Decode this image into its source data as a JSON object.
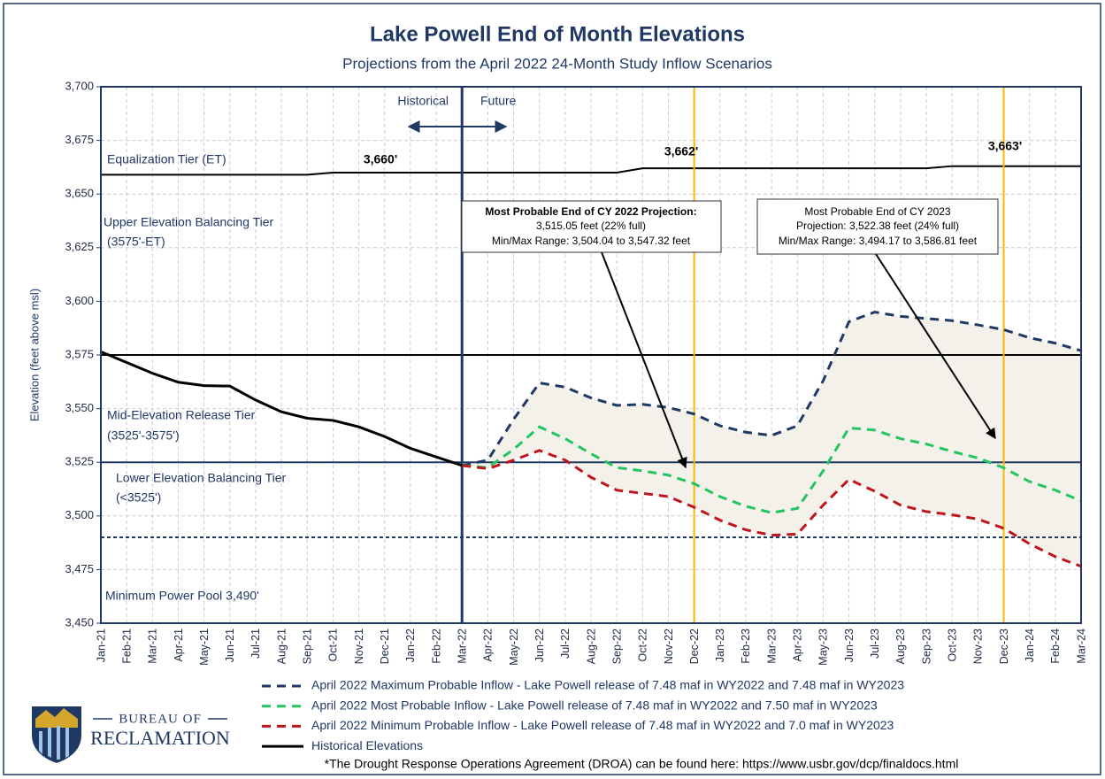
{
  "chart_data": {
    "type": "line",
    "title": "Lake Powell End of Month Elevations",
    "subtitle": "Projections from the April 2022 24-Month Study Inflow Scenarios",
    "y_label": "Elevation (feet above msl)",
    "categories": [
      "Jan-21",
      "Feb-21",
      "Mar-21",
      "Apr-21",
      "May-21",
      "Jun-21",
      "Jul-21",
      "Aug-21",
      "Sep-21",
      "Oct-21",
      "Nov-21",
      "Dec-21",
      "Jan-22",
      "Feb-22",
      "Mar-22",
      "Apr-22",
      "May-22",
      "Jun-22",
      "Jul-22",
      "Aug-22",
      "Sep-22",
      "Oct-22",
      "Nov-22",
      "Dec-22",
      "Jan-23",
      "Feb-23",
      "Mar-23",
      "Apr-23",
      "May-23",
      "Jun-23",
      "Jul-23",
      "Aug-23",
      "Sep-23",
      "Oct-23",
      "Nov-23",
      "Dec-23",
      "Jan-24",
      "Feb-24",
      "Mar-24"
    ],
    "ylim": [
      3450,
      3700
    ],
    "yticks": [
      {
        "value": 3450,
        "label": "3,450"
      },
      {
        "value": 3475,
        "label": "3,475"
      },
      {
        "value": 3500,
        "label": "3,500"
      },
      {
        "value": 3525,
        "label": "3,525"
      },
      {
        "value": 3550,
        "label": "3,550"
      },
      {
        "value": 3575,
        "label": "3,575"
      },
      {
        "value": 3600,
        "label": "3,600"
      },
      {
        "value": 3625,
        "label": "3,625"
      },
      {
        "value": 3650,
        "label": "3,650"
      },
      {
        "value": 3675,
        "label": "3,675"
      },
      {
        "value": 3700,
        "label": "3,700"
      }
    ],
    "grid": true,
    "series": [
      {
        "name": "April  2022 Maximum Probable Inflow - Lake Powell release of 7.48 maf in WY2022 and 7.48 maf in WY2023",
        "color": "#1f3864",
        "dashed": true,
        "values": [
          null,
          null,
          null,
          null,
          null,
          null,
          null,
          null,
          null,
          null,
          null,
          null,
          null,
          null,
          3523.5,
          3526,
          3545,
          3562,
          3560,
          3555,
          3551.5,
          3552,
          3550.5,
          3547.5,
          3542,
          3539,
          3537.5,
          3542,
          3563,
          3590.5,
          3595,
          3593,
          3592,
          3591,
          3589,
          3586.8,
          3583,
          3580.5,
          3577
        ]
      },
      {
        "name": "April 2022 Most Probable Inflow - Lake Powell release of 7.48 maf in WY2022 and 7.50 maf in WY2023",
        "color": "#22c55e",
        "dashed": true,
        "values": [
          null,
          null,
          null,
          null,
          null,
          null,
          null,
          null,
          null,
          null,
          null,
          null,
          null,
          null,
          3523.5,
          3522.5,
          3531,
          3541.5,
          3536,
          3529,
          3522.5,
          3521,
          3519,
          3515,
          3509,
          3504.5,
          3501.5,
          3503.5,
          3521,
          3541,
          3540,
          3536,
          3533.5,
          3530,
          3527,
          3522.4,
          3516,
          3512,
          3507
        ]
      },
      {
        "name": "April 2022 Minimum Probable Inflow - Lake Powell release of 7.48 maf in WY2022 and 7.0 maf in WY2023",
        "color": "#c0141c",
        "dashed": true,
        "values": [
          null,
          null,
          null,
          null,
          null,
          null,
          null,
          null,
          null,
          null,
          null,
          null,
          null,
          null,
          3523.5,
          3522,
          3526,
          3530.5,
          3526,
          3518,
          3512,
          3510.5,
          3509,
          3504,
          3498,
          3493.5,
          3491,
          3491.5,
          3505,
          3517,
          3511.5,
          3505,
          3502,
          3500.5,
          3498.5,
          3494.2,
          3487,
          3481,
          3476.5
        ]
      },
      {
        "name": "Historical Elevations",
        "color": "#000000",
        "dashed": false,
        "values": [
          3576.5,
          3571.5,
          3566.5,
          3562.3,
          3560.7,
          3560.5,
          3554,
          3548.5,
          3545.5,
          3544.5,
          3541.5,
          3537,
          3531.5,
          3527.5,
          3523.5,
          null,
          null,
          null,
          null,
          null,
          null,
          null,
          null,
          null,
          null,
          null,
          null,
          null,
          null,
          null,
          null,
          null,
          null,
          null,
          null,
          null,
          null,
          null,
          null
        ]
      }
    ],
    "range_fill": "#f3f1ea",
    "tier_line": {
      "color": "#000000",
      "values": [
        3659,
        3659,
        3659,
        3659,
        3659,
        3659,
        3659,
        3659,
        3659,
        3660,
        3660,
        3660,
        3660,
        3660,
        3660,
        3660,
        3660,
        3660,
        3660,
        3660,
        3660,
        3662,
        3662,
        3662,
        3662,
        3662,
        3662,
        3662,
        3662,
        3662,
        3662,
        3662,
        3662,
        3663,
        3663,
        3663,
        3663,
        3663,
        3663
      ]
    },
    "tier_labels": [
      "3,660'",
      "3,662'",
      "3,663'"
    ],
    "reference_lines": [
      {
        "value": 3575,
        "color": "#000000",
        "dotted": false
      },
      {
        "value": 3525,
        "color": "#1f3864",
        "dotted": false
      },
      {
        "value": 3490,
        "color": "#1f3864",
        "dotted": true
      }
    ],
    "vertical_lines": [
      {
        "category": "Mar-22",
        "color": "#1f3864",
        "width": 3
      },
      {
        "category": "Dec-22",
        "color": "#f5b800",
        "width": 2
      },
      {
        "category": "Dec-23",
        "color": "#f5b800",
        "width": 2
      }
    ],
    "annotations": [
      "Historical",
      "Future",
      "Equalization Tier (ET)",
      "Upper Elevation Balancing Tier",
      "(3575'-ET)",
      "Mid-Elevation Release Tier",
      "(3525'-3575')",
      "Lower Elevation Balancing Tier",
      "(<3525')",
      "Minimum Power Pool 3,490'"
    ],
    "callout_2022": [
      "Most Probable End of CY 2022  Projection:",
      "3,515.05 feet (22% full)",
      "Min/Max Range: 3,504.04 to 3,547.32 feet"
    ],
    "callout_2023": [
      "Most Probable End of CY 2023",
      "Projection: 3,522.38 feet (24% full)",
      "Min/Max Range: 3,494.17 to 3,586.81 feet"
    ],
    "logo": [
      "BUREAU OF",
      "RECLAMATION"
    ],
    "footnote": "*The Drought Response Operations Agreement (DROA) can be found here: https://www.usbr.gov/dcp/finaldocs.html"
  }
}
